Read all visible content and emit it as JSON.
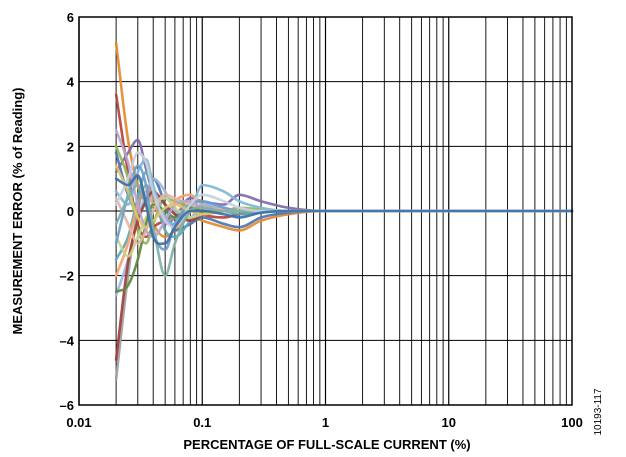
{
  "chart_data": {
    "type": "line",
    "title": "",
    "xlabel": "PERCENTAGE OF FULL-SCALE CURRENT (%)",
    "ylabel": "MEASUREMENT ERROR (% of Reading)",
    "x_scale": "log",
    "xlim": [
      0.01,
      100
    ],
    "ylim": [
      -6,
      6
    ],
    "grid": true,
    "x_ticks": [
      0.01,
      0.1,
      1,
      10,
      100
    ],
    "x_tick_labels": [
      "0.01",
      "0.1",
      "1",
      "10",
      "100"
    ],
    "y_ticks": [
      -6,
      -4,
      -2,
      0,
      2,
      4,
      6
    ],
    "y_tick_labels": [
      "–6",
      "–4",
      "–2",
      "0",
      "2",
      "4",
      "6"
    ],
    "figure_id": "10193-117",
    "x": [
      0.02,
      0.025,
      0.03,
      0.035,
      0.04,
      0.05,
      0.06,
      0.08,
      0.1,
      0.15,
      0.2,
      0.3,
      0.5,
      1,
      2,
      10,
      100
    ],
    "series": [
      {
        "color": "#e58a2e",
        "values": [
          5.2,
          2.2,
          0.8,
          0.2,
          -0.4,
          -0.8,
          -0.6,
          -0.2,
          -0.3,
          -0.5,
          -0.6,
          -0.3,
          -0.1,
          0.0,
          0.0,
          0.0,
          0.0
        ]
      },
      {
        "color": "#b5413a",
        "values": [
          3.6,
          1.2,
          -0.4,
          -0.8,
          -0.5,
          -0.3,
          -0.2,
          0.1,
          -0.1,
          -0.2,
          -0.1,
          0.0,
          0.0,
          0.0,
          0.0,
          0.0,
          0.0
        ]
      },
      {
        "color": "#4a74b0",
        "values": [
          1.8,
          0.5,
          0.0,
          0.4,
          1.0,
          0.2,
          -0.6,
          -0.4,
          -0.2,
          -0.4,
          -0.5,
          -0.2,
          -0.05,
          0.0,
          0.0,
          0.0,
          0.0
        ]
      },
      {
        "color": "#7d6aa8",
        "values": [
          1.2,
          1.8,
          2.2,
          1.3,
          0.5,
          -0.4,
          -0.2,
          0.4,
          0.3,
          0.2,
          0.5,
          0.3,
          0.1,
          0.0,
          0.0,
          0.0,
          0.0
        ]
      },
      {
        "color": "#8fb65a",
        "values": [
          2.0,
          1.0,
          -0.6,
          -1.0,
          -0.4,
          0.4,
          0.3,
          0.1,
          -0.1,
          0.0,
          0.1,
          0.05,
          0.0,
          0.0,
          0.0,
          0.0,
          0.0
        ]
      },
      {
        "color": "#5aa7b8",
        "values": [
          -1.5,
          -0.8,
          0.4,
          1.2,
          0.6,
          -0.6,
          -0.8,
          -0.3,
          0.2,
          0.0,
          -0.1,
          -0.05,
          0.0,
          0.0,
          0.0,
          0.0,
          0.0
        ]
      },
      {
        "color": "#f2a36b",
        "values": [
          -2.0,
          -1.0,
          0.2,
          0.6,
          0.2,
          -0.2,
          0.3,
          0.5,
          0.2,
          0.0,
          0.0,
          0.0,
          0.0,
          0.0,
          0.0,
          0.0,
          0.0
        ]
      },
      {
        "color": "#9fb7dd",
        "values": [
          -2.6,
          -1.5,
          -0.2,
          0.5,
          1.0,
          0.6,
          0.0,
          -0.2,
          0.2,
          0.1,
          0.0,
          0.0,
          0.0,
          0.0,
          0.0,
          0.0,
          0.0
        ]
      },
      {
        "color": "#a0a0a0",
        "values": [
          -5.2,
          -2.0,
          0.0,
          0.8,
          0.4,
          -0.3,
          -0.2,
          0.2,
          0.0,
          0.0,
          0.0,
          0.0,
          0.0,
          0.0,
          0.0,
          0.0,
          0.0
        ]
      },
      {
        "color": "#a13c3c",
        "values": [
          -4.6,
          -1.6,
          -0.3,
          0.3,
          0.6,
          0.2,
          -0.1,
          -0.3,
          -0.1,
          0.0,
          0.0,
          0.0,
          0.0,
          0.0,
          0.0,
          0.0,
          0.0
        ]
      },
      {
        "color": "#7fb8d6",
        "values": [
          0.6,
          0.2,
          1.2,
          1.6,
          0.8,
          -0.2,
          -0.4,
          0.0,
          0.8,
          0.6,
          0.3,
          0.1,
          0.0,
          0.0,
          0.0,
          0.0,
          0.0
        ]
      },
      {
        "color": "#c9d48a",
        "values": [
          -0.8,
          -1.4,
          -0.8,
          -0.2,
          0.2,
          0.4,
          0.1,
          -0.2,
          -0.1,
          0.0,
          0.0,
          0.0,
          0.0,
          0.0,
          0.0,
          0.0,
          0.0
        ]
      },
      {
        "color": "#5c8a3c",
        "values": [
          -2.5,
          -2.3,
          -1.5,
          -0.4,
          0.2,
          0.0,
          -0.2,
          0.1,
          0.0,
          0.0,
          0.0,
          0.0,
          0.0,
          0.0,
          0.0,
          0.0,
          0.0
        ]
      },
      {
        "color": "#e7b5a0",
        "values": [
          0.4,
          -0.4,
          -1.0,
          -0.6,
          0.0,
          0.5,
          0.4,
          0.2,
          0.1,
          0.05,
          0.0,
          0.0,
          0.0,
          0.0,
          0.0,
          0.0,
          0.0
        ]
      },
      {
        "color": "#6d9ed0",
        "values": [
          -1.0,
          0.5,
          1.4,
          0.8,
          -0.6,
          -1.2,
          -0.4,
          0.2,
          0.3,
          0.1,
          0.0,
          0.0,
          0.0,
          0.0,
          0.0,
          0.0,
          0.0
        ]
      },
      {
        "color": "#b9a5cf",
        "values": [
          2.5,
          1.5,
          0.2,
          -0.6,
          -0.8,
          -0.3,
          0.2,
          0.3,
          0.1,
          0.0,
          0.0,
          0.0,
          0.0,
          0.0,
          0.0,
          0.0,
          0.0
        ]
      },
      {
        "color": "#e0c46a",
        "values": [
          1.4,
          0.6,
          -0.2,
          -0.5,
          -0.3,
          0.1,
          0.2,
          0.0,
          -0.1,
          0.0,
          0.0,
          0.0,
          0.0,
          0.0,
          0.0,
          0.0,
          0.0
        ]
      },
      {
        "color": "#7fb0a8",
        "values": [
          -0.4,
          0.4,
          0.8,
          0.3,
          -0.5,
          -2.0,
          -1.0,
          0.0,
          0.1,
          0.0,
          0.0,
          0.0,
          0.0,
          0.0,
          0.0,
          0.0,
          0.0
        ]
      },
      {
        "color": "#c8cfe0",
        "values": [
          0.2,
          1.0,
          1.8,
          1.5,
          0.6,
          -0.3,
          -0.5,
          0.2,
          0.5,
          0.3,
          0.1,
          0.0,
          0.0,
          0.0,
          0.0,
          0.0,
          0.0
        ]
      },
      {
        "color": "#3d6fa6",
        "values": [
          1.0,
          0.8,
          1.1,
          0.2,
          -0.8,
          -1.0,
          -0.5,
          0.0,
          0.0,
          -0.1,
          -0.2,
          -0.05,
          0.0,
          0.0,
          0.0,
          0.0,
          0.0
        ]
      }
    ]
  }
}
